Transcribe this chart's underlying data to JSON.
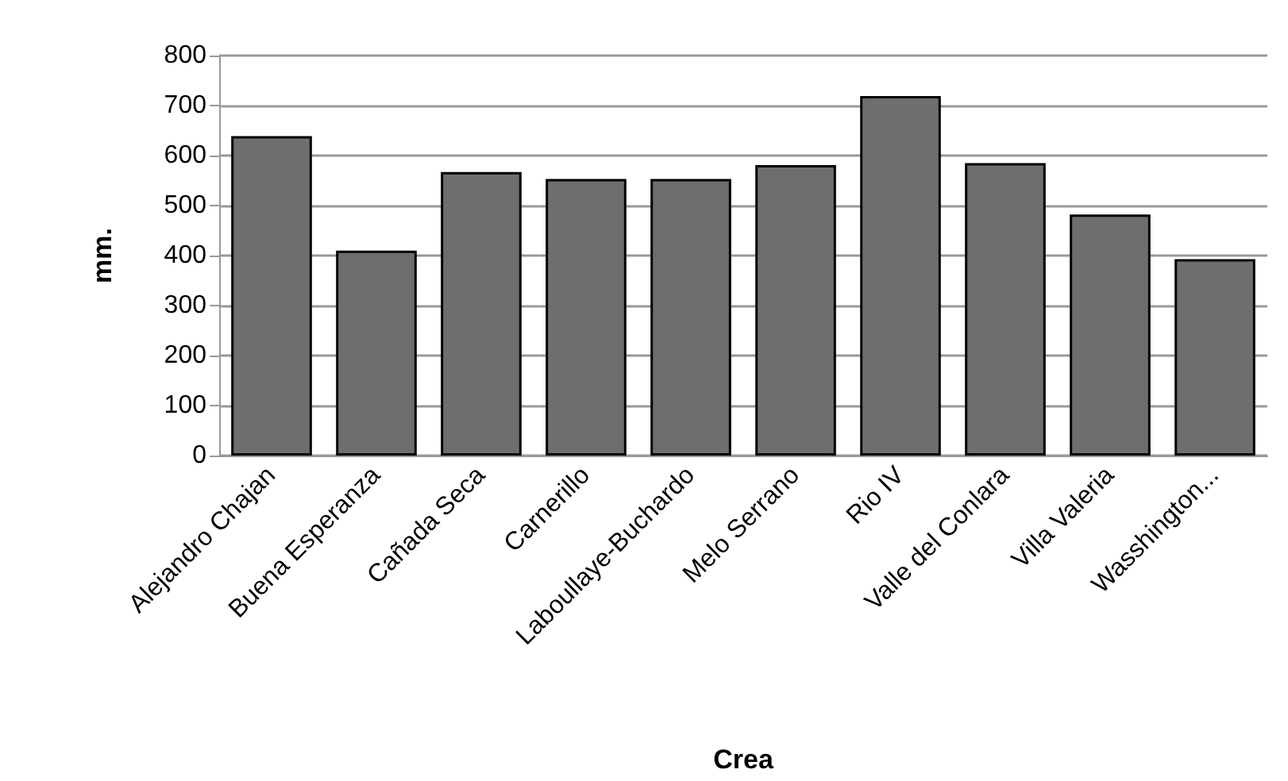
{
  "chart_data": {
    "type": "bar",
    "xlabel": "Crea",
    "ylabel": "mm.",
    "categories": [
      "Alejandro Chajan",
      "Buena Esperanza",
      "Cañada Seca",
      "Carnerillo",
      "Laboullaye-Buchardo",
      "Melo Serrano",
      "Rio IV",
      "Valle del Conlara",
      "Villa Valeria",
      "Wasshington..."
    ],
    "values": [
      639,
      410,
      567,
      553,
      553,
      581,
      719,
      585,
      482,
      393
    ],
    "color": "#6e6e6e",
    "ylim": [
      0,
      800
    ],
    "yticks": [
      0,
      100,
      200,
      300,
      400,
      500,
      600,
      700,
      800
    ],
    "grid": "y"
  }
}
